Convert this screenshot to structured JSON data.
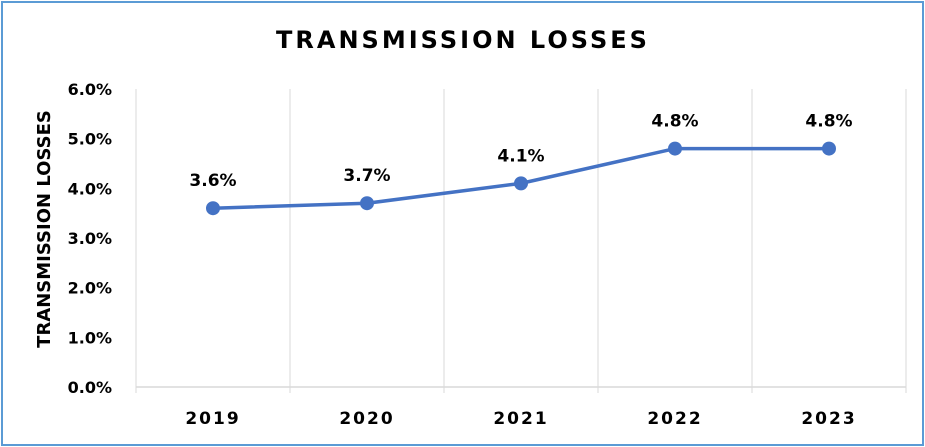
{
  "chart_data": {
    "type": "line",
    "title": "TRANSMISSION LOSSES",
    "xlabel": "",
    "ylabel": "TRANSMISSION LOSSES",
    "categories": [
      "2019",
      "2020",
      "2021",
      "2022",
      "2023"
    ],
    "series": [
      {
        "values": [
          3.6,
          3.7,
          4.1,
          4.8,
          4.8
        ],
        "labels": [
          "3.6%",
          "3.7%",
          "4.1%",
          "4.8%",
          "4.8%"
        ],
        "color": "#4472C4"
      }
    ],
    "yticks": [
      "0.0%",
      "1.0%",
      "2.0%",
      "3.0%",
      "4.0%",
      "5.0%",
      "6.0%"
    ],
    "ylim": [
      0,
      6
    ],
    "grid": "vertical",
    "legend": "none"
  },
  "colors": {
    "line": "#4472C4",
    "frame": "#5B9BD5",
    "grid": "#D9D9D9"
  }
}
